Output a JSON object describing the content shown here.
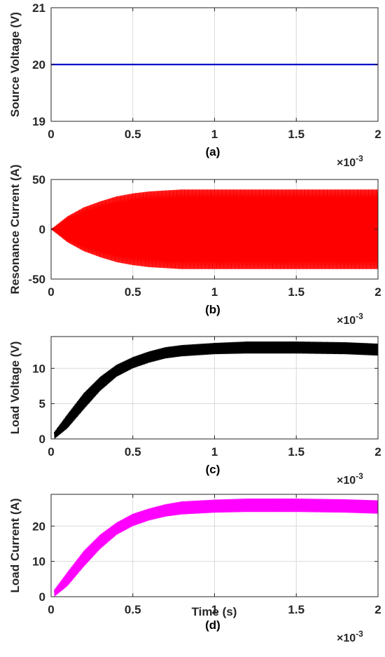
{
  "chart_data": [
    {
      "type": "line",
      "caption": "(a)",
      "ylabel": "Source Voltage (V)",
      "xlabel": "",
      "x_multiplier": "×10",
      "x_multiplier_exp": "-3",
      "xlim": [
        0,
        2
      ],
      "ylim": [
        19,
        21
      ],
      "xticks": [
        "0",
        "0.5",
        "1",
        "1.5",
        "2"
      ],
      "yticks": [
        "19",
        "20",
        "21"
      ],
      "grid": true,
      "series": [
        {
          "color": "#0000cc",
          "x": [
            0,
            0.5,
            1,
            1.5,
            2
          ],
          "y": [
            20,
            20,
            20,
            20,
            20
          ]
        }
      ]
    },
    {
      "type": "line",
      "caption": "(b)",
      "ylabel": "Resonance Current (A)",
      "xlabel": "",
      "x_multiplier": "×10",
      "x_multiplier_exp": "-3",
      "xlim": [
        0,
        2
      ],
      "ylim": [
        -50,
        50
      ],
      "xticks": [
        "0",
        "0.5",
        "1",
        "1.5",
        "2"
      ],
      "yticks": [
        "-50",
        "0",
        "50"
      ],
      "grid": true,
      "style": "oscillation",
      "series": [
        {
          "color": "#ff0000",
          "x": [
            0,
            0.1,
            0.2,
            0.3,
            0.4,
            0.5,
            0.6,
            0.7,
            0.8,
            1.0,
            1.2,
            1.5,
            2.0
          ],
          "envelope": [
            0,
            13,
            22,
            28,
            33,
            36,
            38,
            39,
            40,
            40,
            40,
            40,
            40
          ]
        }
      ]
    },
    {
      "type": "line",
      "caption": "(c)",
      "ylabel": "Load Voltage (V)",
      "xlabel": "",
      "x_multiplier": "×10",
      "x_multiplier_exp": "-3",
      "xlim": [
        0,
        2
      ],
      "ylim": [
        0,
        14.5
      ],
      "xticks": [
        "0",
        "0.5",
        "1",
        "1.5",
        "2"
      ],
      "yticks": [
        "0",
        "5",
        "10"
      ],
      "grid": true,
      "style": "ripple",
      "series": [
        {
          "color": "#000000",
          "x": [
            0.02,
            0.1,
            0.2,
            0.3,
            0.4,
            0.5,
            0.6,
            0.7,
            0.8,
            1.0,
            1.2,
            1.5,
            1.8,
            2.0
          ],
          "upper": [
            1,
            3.5,
            6.5,
            8.8,
            10.5,
            11.6,
            12.4,
            13,
            13.3,
            13.6,
            13.8,
            13.8,
            13.7,
            13.5
          ],
          "lower": [
            0,
            1.5,
            4.2,
            6.8,
            8.8,
            10,
            10.8,
            11.4,
            11.7,
            12,
            12.1,
            12.1,
            12,
            11.8
          ]
        }
      ]
    },
    {
      "type": "line",
      "caption": "(d)",
      "ylabel": "Load Current (A)",
      "xlabel": "Time (s)",
      "x_multiplier": "×10",
      "x_multiplier_exp": "-3",
      "xlim": [
        0,
        2
      ],
      "ylim": [
        0,
        29
      ],
      "xticks": [
        "0",
        "0.5",
        "1",
        "1.5",
        "2"
      ],
      "yticks": [
        "0",
        "10",
        "20"
      ],
      "grid": true,
      "style": "ripple",
      "series": [
        {
          "color": "#ff00ff",
          "x": [
            0.02,
            0.1,
            0.2,
            0.3,
            0.4,
            0.5,
            0.6,
            0.7,
            0.8,
            1.0,
            1.2,
            1.5,
            1.8,
            2.0
          ],
          "upper": [
            2,
            7,
            13,
            17.6,
            21,
            23.5,
            25,
            26.2,
            27,
            27.5,
            27.8,
            27.8,
            27.6,
            27.3
          ],
          "lower": [
            0,
            3,
            8.5,
            13.5,
            17.5,
            20,
            21.6,
            22.7,
            23.3,
            23.8,
            24,
            24,
            23.8,
            23.5
          ]
        }
      ]
    }
  ]
}
